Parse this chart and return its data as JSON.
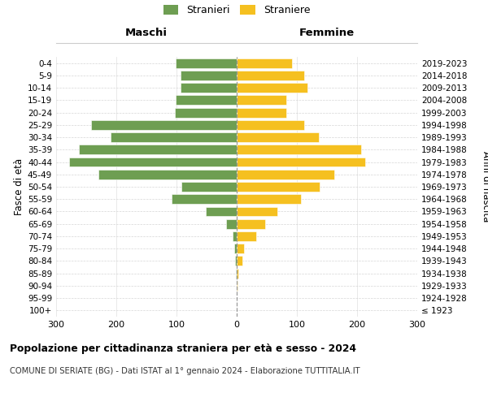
{
  "age_groups": [
    "100+",
    "95-99",
    "90-94",
    "85-89",
    "80-84",
    "75-79",
    "70-74",
    "65-69",
    "60-64",
    "55-59",
    "50-54",
    "45-49",
    "40-44",
    "35-39",
    "30-34",
    "25-29",
    "20-24",
    "15-19",
    "10-14",
    "5-9",
    "0-4"
  ],
  "birth_years": [
    "≤ 1923",
    "1924-1928",
    "1929-1933",
    "1934-1938",
    "1939-1943",
    "1944-1948",
    "1949-1953",
    "1954-1958",
    "1959-1963",
    "1964-1968",
    "1969-1973",
    "1974-1978",
    "1979-1983",
    "1984-1988",
    "1989-1993",
    "1994-1998",
    "1999-2003",
    "2004-2008",
    "2009-2013",
    "2014-2018",
    "2019-2023"
  ],
  "males": [
    0,
    0,
    0,
    1,
    3,
    4,
    7,
    18,
    52,
    108,
    92,
    230,
    278,
    262,
    210,
    242,
    103,
    102,
    93,
    93,
    102
  ],
  "females": [
    0,
    0,
    1,
    3,
    10,
    12,
    32,
    47,
    68,
    107,
    138,
    162,
    213,
    207,
    137,
    112,
    82,
    82,
    117,
    112,
    92
  ],
  "male_color": "#6e9e52",
  "female_color": "#f5c020",
  "background_color": "#ffffff",
  "grid_color": "#cccccc",
  "title_main": "Popolazione per cittadinanza straniera per età e sesso - 2024",
  "title_sub": "COMUNE DI SERIATE (BG) - Dati ISTAT al 1° gennaio 2024 - Elaborazione TUTTITALIA.IT",
  "legend_male": "Stranieri",
  "legend_female": "Straniere",
  "xlabel_left": "Maschi",
  "xlabel_right": "Femmine",
  "ylabel_left": "Fasce di età",
  "ylabel_right": "Anni di nascita",
  "xlim": 300,
  "center_line_color": "#999999"
}
